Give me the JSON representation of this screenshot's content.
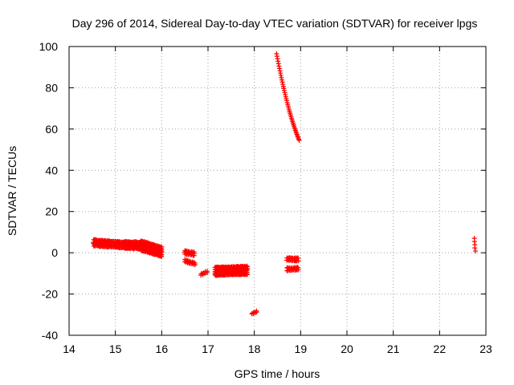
{
  "chart_data": {
    "type": "scatter",
    "title": "Day 296 of 2014, Sidereal Day-to-day VTEC variation (SDTVAR) for receiver lpgs",
    "xlabel": "GPS time / hours",
    "ylabel": "SDTVAR / TECUs",
    "xlim": [
      14,
      23
    ],
    "ylim": [
      -40,
      100
    ],
    "x_ticks": [
      14,
      15,
      16,
      17,
      18,
      19,
      20,
      21,
      22,
      23
    ],
    "y_ticks": [
      -40,
      -20,
      0,
      20,
      40,
      60,
      80,
      100
    ],
    "x_tick_labels": [
      "14",
      "15",
      "16",
      "17",
      "18",
      "19",
      "20",
      "21",
      "22",
      "23"
    ],
    "y_tick_labels": [
      "-40",
      "-20",
      "0",
      "20",
      "40",
      "60",
      "80",
      "100"
    ],
    "grid": true,
    "marker": "plus",
    "marker_color": "#ff0000",
    "series": [
      {
        "name": "SDTVAR",
        "color": "#ff0000",
        "clusters": [
          {
            "x_start": 14.53,
            "x_end": 15.2,
            "y_start": 4.8,
            "y_end": 3.8,
            "spread": 2.8,
            "count": 36
          },
          {
            "x_start": 15.2,
            "x_end": 15.55,
            "y_start": 3.8,
            "y_end": 3.5,
            "spread": 3.2,
            "count": 20
          },
          {
            "x_start": 15.55,
            "x_end": 16.0,
            "y_start": 3.5,
            "y_end": 0.5,
            "spread": 4.5,
            "count": 26
          },
          {
            "x_start": 16.5,
            "x_end": 16.7,
            "y_start": 0.2,
            "y_end": -0.5,
            "spread": 1.4,
            "count": 9
          },
          {
            "x_start": 16.5,
            "x_end": 16.72,
            "y_start": -3.8,
            "y_end": -5.4,
            "spread": 1.0,
            "count": 9
          },
          {
            "x_start": 16.85,
            "x_end": 16.98,
            "y_start": -10.5,
            "y_end": -9.2,
            "spread": 0.6,
            "count": 5
          },
          {
            "x_start": 17.15,
            "x_end": 17.85,
            "y_start": -9.0,
            "y_end": -8.5,
            "spread": 3.8,
            "count": 44
          },
          {
            "x_start": 17.95,
            "x_end": 18.05,
            "y_start": -29.5,
            "y_end": -28.6,
            "spread": 0.5,
            "count": 4
          },
          {
            "x_start": 18.7,
            "x_end": 18.95,
            "y_start": -3.0,
            "y_end": -3.3,
            "spread": 1.2,
            "count": 12
          },
          {
            "x_start": 18.7,
            "x_end": 18.95,
            "y_start": -8.0,
            "y_end": -7.8,
            "spread": 1.2,
            "count": 12
          },
          {
            "x_start": 22.75,
            "x_end": 22.77,
            "y_start": 7.0,
            "y_end": 0.8,
            "spread": 0.0,
            "count": 5
          }
        ],
        "curve": {
          "x_start": 18.48,
          "x_end": 18.97,
          "y_start": 96.5,
          "y_end": 54.5,
          "curvature": 8,
          "count": 48
        }
      }
    ]
  }
}
